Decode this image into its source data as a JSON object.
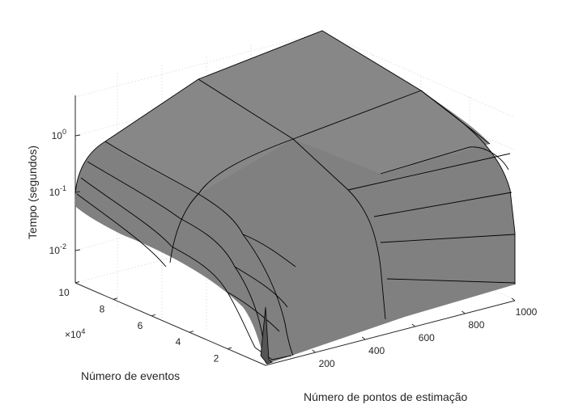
{
  "chart_data": {
    "type": "surface",
    "title": "",
    "xlabel": "Número de pontos de estimação",
    "ylabel": "Número de eventos",
    "zlabel": "Tempo (segundos)",
    "z_scale": "log",
    "grid": true,
    "x_ticks": [
      "200",
      "400",
      "600",
      "800",
      "1000"
    ],
    "y_ticks": [
      "2",
      "4",
      "6",
      "8",
      "10"
    ],
    "y_exponent": {
      "base": "×10",
      "power": "4"
    },
    "z_ticks": [
      {
        "base": "10",
        "exp": "-2"
      },
      {
        "base": "10",
        "exp": "-1"
      },
      {
        "base": "10",
        "exp": "0"
      }
    ],
    "x_range": [
      0,
      1000
    ],
    "y_range": [
      0,
      100000
    ],
    "colors": {
      "surface": "#808080",
      "edge": "#000000",
      "grid": "#d9d9d9",
      "axis": "#262626"
    }
  }
}
